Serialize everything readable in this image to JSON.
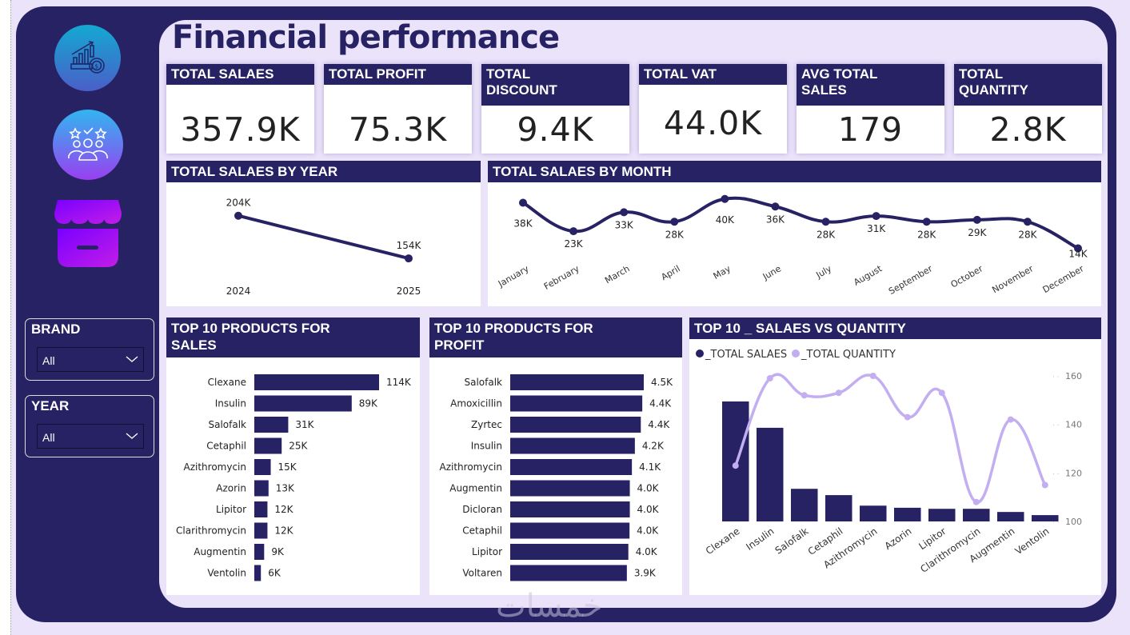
{
  "page": {
    "title": "Financial performance",
    "watermark": "خمسات"
  },
  "sidebar": {
    "icons": [
      {
        "name": "financial-growth-icon"
      },
      {
        "name": "customer-rating-icon"
      },
      {
        "name": "store-icon"
      }
    ],
    "slicers": [
      {
        "label": "BRAND",
        "selected": "All"
      },
      {
        "label": "YEAR",
        "selected": "All"
      }
    ]
  },
  "kpis": [
    {
      "label": "TOTAL SALAES",
      "value": "357.9K"
    },
    {
      "label": "TOTAL PROFIT",
      "value": "75.3K"
    },
    {
      "label": "TOTAL DISCOUNT",
      "value": "9.4K"
    },
    {
      "label": "TOTAL VAT",
      "value": "44.0K"
    },
    {
      "label": "AVG TOTAL SALES",
      "value": "179"
    },
    {
      "label": "TOTAL QUANTITY",
      "value": "2.8K"
    }
  ],
  "colors": {
    "navy": "#272263",
    "lavender": "#ebe3fa",
    "quantity_line": "#c2aef0"
  },
  "chart_data": [
    {
      "id": "sales-by-year",
      "type": "line",
      "title": "TOTAL SALAES BY YEAR",
      "categories": [
        "2024",
        "2025"
      ],
      "values": [
        204,
        154
      ],
      "labels": [
        "204K",
        "154K"
      ],
      "unit": "K",
      "ylim": [
        140,
        215
      ]
    },
    {
      "id": "sales-by-month",
      "type": "line",
      "title": "TOTAL SALAES BY MONTH",
      "categories": [
        "January",
        "February",
        "March",
        "April",
        "May",
        "June",
        "July",
        "August",
        "September",
        "October",
        "November",
        "December"
      ],
      "values": [
        38,
        23,
        33,
        28,
        40,
        36,
        28,
        31,
        28,
        29,
        28,
        14
      ],
      "labels": [
        "38K",
        "23K",
        "33K",
        "28K",
        "40K",
        "36K",
        "28K",
        "31K",
        "28K",
        "29K",
        "28K",
        "14K"
      ],
      "unit": "K",
      "ylim": [
        10,
        42
      ]
    },
    {
      "id": "top-products-sales",
      "type": "bar",
      "orientation": "horizontal",
      "title": "TOP 10 PRODUCTS FOR SALES",
      "categories": [
        "Clexane",
        "Insulin",
        "Salofalk",
        "Cetaphil",
        "Azithromycin",
        "Azorin",
        "Lipitor",
        "Clarithromycin",
        "Augmentin",
        "Ventolin"
      ],
      "values": [
        114,
        89,
        31,
        25,
        15,
        13,
        12,
        12,
        9,
        6
      ],
      "labels": [
        "114K",
        "89K",
        "31K",
        "25K",
        "15K",
        "13K",
        "12K",
        "12K",
        "9K",
        "6K"
      ],
      "unit": "K"
    },
    {
      "id": "top-products-profit",
      "type": "bar",
      "orientation": "horizontal",
      "title": "TOP 10 PRODUCTS FOR PROFIT",
      "categories": [
        "Salofalk",
        "Amoxicillin",
        "Zyrtec",
        "Insulin",
        "Azithromycin",
        "Augmentin",
        "Dicloran",
        "Cetaphil",
        "Lipitor",
        "Voltaren"
      ],
      "values": [
        4.5,
        4.45,
        4.4,
        4.2,
        4.1,
        4.03,
        4.03,
        4.02,
        3.98,
        3.93
      ],
      "labels": [
        "4.5K",
        "4.4K",
        "4.4K",
        "4.2K",
        "4.1K",
        "4.0K",
        "4.0K",
        "4.0K",
        "4.0K",
        "3.9K"
      ],
      "unit": "K"
    },
    {
      "id": "sales-vs-quantity",
      "type": "bar",
      "title": "TOP 10 _ SALAES VS QUANTITY",
      "categories": [
        "Clexane",
        "Insulin",
        "Salofalk",
        "Cetaphil",
        "Azithromycin",
        "Azorin",
        "Lipitor",
        "Clarithromycin",
        "Augmentin",
        "Ventolin"
      ],
      "legend": [
        "_TOTAL SALAES",
        "_TOTAL QUANTITY"
      ],
      "legend_position": "top-left",
      "series": [
        {
          "name": "_TOTAL SALAES",
          "type": "bar",
          "values": [
            114,
            89,
            31,
            25,
            15,
            13,
            12,
            12,
            9,
            6
          ]
        },
        {
          "name": "_TOTAL QUANTITY",
          "type": "line",
          "values": [
            123,
            159,
            152,
            153,
            160,
            143,
            153,
            108,
            142,
            115
          ]
        }
      ],
      "y2_ticks": [
        "100",
        "120",
        "140",
        "160"
      ],
      "y2lim": [
        100,
        160
      ]
    }
  ]
}
